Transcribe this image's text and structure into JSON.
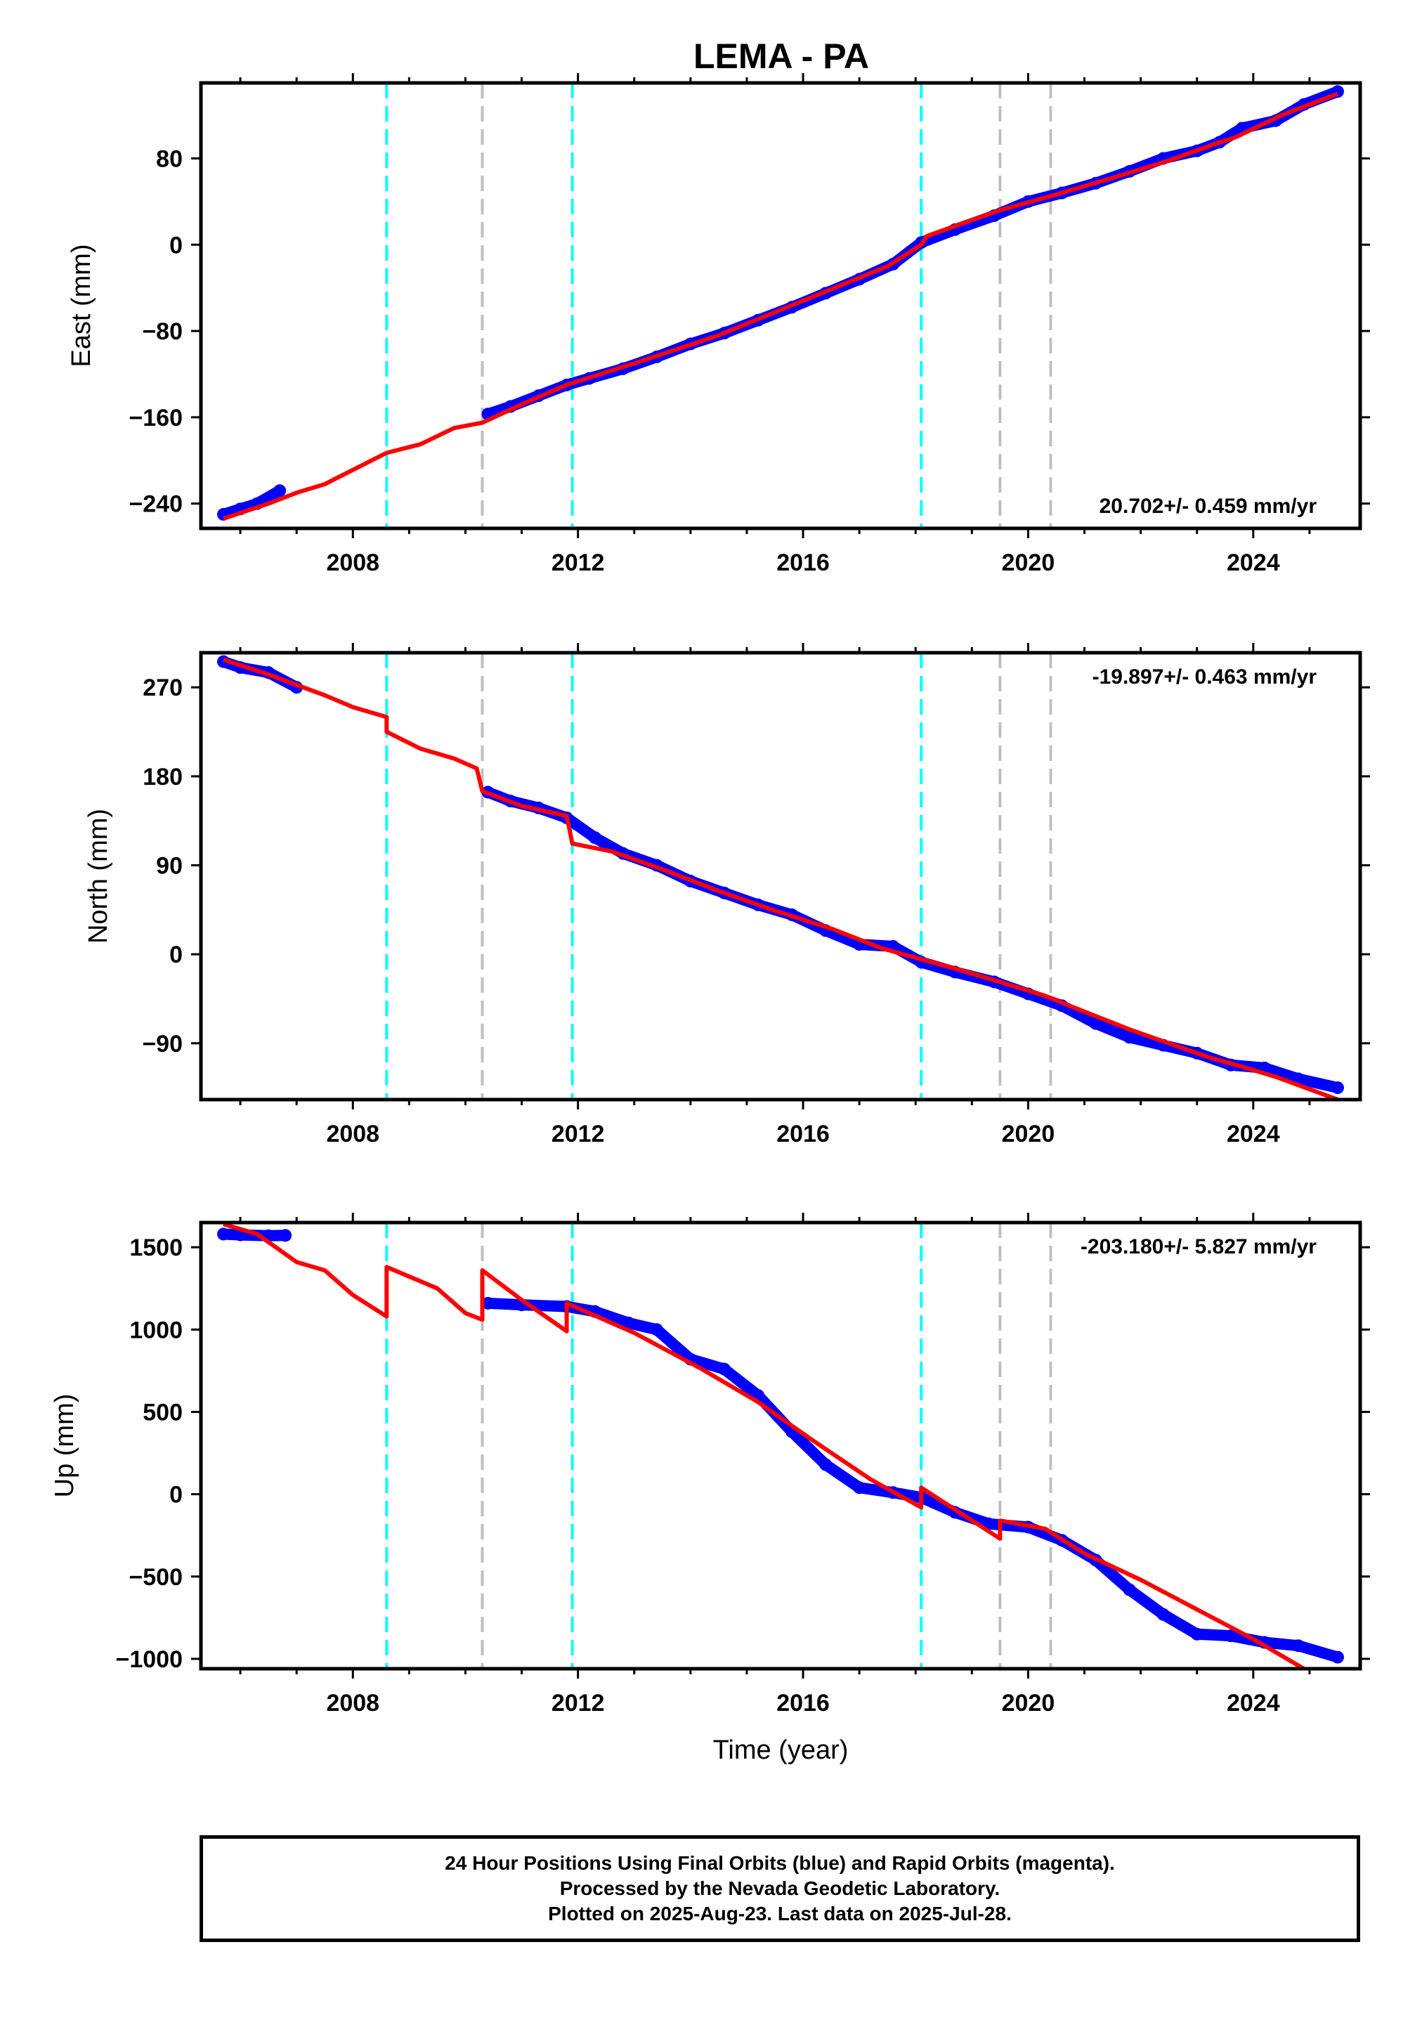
{
  "title": "LEMA - PA",
  "chart_data": [
    {
      "type": "scatter",
      "name": "east",
      "ylabel": "East (mm)",
      "xlabel": "",
      "xlim": [
        2005.3,
        2025.9
      ],
      "ylim": [
        -263,
        150
      ],
      "x_ticks": [
        2008,
        2012,
        2016,
        2020,
        2024
      ],
      "x_tick_labels": [
        "2008",
        "2012",
        "2016",
        "2020",
        "2024"
      ],
      "y_ticks": [
        -240,
        -160,
        -80,
        0,
        80
      ],
      "y_tick_labels": [
        "−240",
        "−160",
        "−80",
        "0",
        "80"
      ],
      "rate": "20.702+/- 0.459 mm/yr",
      "rate_position": "bottom-right",
      "observed": [
        [
          2005.7,
          -250
        ],
        [
          2006.0,
          -245
        ],
        [
          2006.3,
          -240
        ],
        [
          2006.7,
          -228
        ],
        [
          2010.4,
          -157
        ],
        [
          2010.8,
          -150
        ],
        [
          2011.3,
          -140
        ],
        [
          2011.8,
          -130
        ],
        [
          2012.2,
          -124
        ],
        [
          2012.8,
          -115
        ],
        [
          2013.4,
          -104
        ],
        [
          2014.0,
          -92
        ],
        [
          2014.6,
          -82
        ],
        [
          2015.2,
          -70
        ],
        [
          2015.8,
          -58
        ],
        [
          2016.4,
          -45
        ],
        [
          2017.0,
          -32
        ],
        [
          2017.6,
          -18
        ],
        [
          2018.1,
          2
        ],
        [
          2018.7,
          14
        ],
        [
          2019.4,
          27
        ],
        [
          2020.0,
          40
        ],
        [
          2020.6,
          48
        ],
        [
          2021.2,
          57
        ],
        [
          2021.8,
          68
        ],
        [
          2022.4,
          80
        ],
        [
          2023.0,
          87
        ],
        [
          2023.4,
          95
        ],
        [
          2023.8,
          108
        ],
        [
          2024.4,
          115
        ],
        [
          2024.9,
          130
        ],
        [
          2025.5,
          142
        ]
      ],
      "model": [
        [
          2005.7,
          -254
        ],
        [
          2006.5,
          -240
        ],
        [
          2007.0,
          -230
        ],
        [
          2007.5,
          -222
        ],
        [
          2008.6,
          -193
        ],
        [
          2009.2,
          -185
        ],
        [
          2009.8,
          -170
        ],
        [
          2010.3,
          -165
        ],
        [
          2011.0,
          -148
        ],
        [
          2011.8,
          -130
        ],
        [
          2013.0,
          -110
        ],
        [
          2014.5,
          -84
        ],
        [
          2016.0,
          -52
        ],
        [
          2017.5,
          -20
        ],
        [
          2018.1,
          0
        ],
        [
          2018.2,
          8
        ],
        [
          2019.5,
          32
        ],
        [
          2020.4,
          45
        ],
        [
          2021.5,
          62
        ],
        [
          2022.5,
          78
        ],
        [
          2023.3,
          93
        ],
        [
          2023.7,
          100
        ],
        [
          2024.5,
          120
        ],
        [
          2025.5,
          140
        ]
      ]
    },
    {
      "type": "scatter",
      "name": "north",
      "ylabel": "North (mm)",
      "xlabel": "",
      "xlim": [
        2005.3,
        2025.9
      ],
      "ylim": [
        -147,
        305
      ],
      "x_ticks": [
        2008,
        2012,
        2016,
        2020,
        2024
      ],
      "x_tick_labels": [
        "2008",
        "2012",
        "2016",
        "2020",
        "2024"
      ],
      "y_ticks": [
        -90,
        0,
        90,
        180,
        270
      ],
      "y_tick_labels": [
        "−90",
        "0",
        "90",
        "180",
        "270"
      ],
      "rate": "-19.897+/- 0.463 mm/yr",
      "rate_position": "top-right",
      "observed": [
        [
          2005.7,
          296
        ],
        [
          2006.0,
          290
        ],
        [
          2006.5,
          285
        ],
        [
          2007.0,
          270
        ],
        [
          2010.4,
          164
        ],
        [
          2010.8,
          155
        ],
        [
          2011.3,
          148
        ],
        [
          2011.8,
          138
        ],
        [
          2012.3,
          118
        ],
        [
          2012.8,
          102
        ],
        [
          2013.4,
          90
        ],
        [
          2014.0,
          74
        ],
        [
          2014.6,
          62
        ],
        [
          2015.2,
          50
        ],
        [
          2015.8,
          40
        ],
        [
          2016.4,
          24
        ],
        [
          2017.0,
          10
        ],
        [
          2017.6,
          8
        ],
        [
          2018.1,
          -8
        ],
        [
          2018.7,
          -18
        ],
        [
          2019.4,
          -28
        ],
        [
          2020.0,
          -40
        ],
        [
          2020.6,
          -52
        ],
        [
          2021.2,
          -70
        ],
        [
          2021.8,
          -84
        ],
        [
          2022.4,
          -92
        ],
        [
          2023.0,
          -100
        ],
        [
          2023.6,
          -112
        ],
        [
          2024.2,
          -115
        ],
        [
          2024.8,
          -126
        ],
        [
          2025.5,
          -135
        ]
      ],
      "model": [
        [
          2005.7,
          298
        ],
        [
          2006.5,
          283
        ],
        [
          2007.5,
          262
        ],
        [
          2008.0,
          250
        ],
        [
          2008.6,
          240
        ],
        [
          2008.6,
          225
        ],
        [
          2009.2,
          208
        ],
        [
          2009.8,
          198
        ],
        [
          2010.2,
          188
        ],
        [
          2010.3,
          165
        ],
        [
          2011.0,
          150
        ],
        [
          2011.8,
          140
        ],
        [
          2011.9,
          112
        ],
        [
          2012.6,
          104
        ],
        [
          2013.5,
          86
        ],
        [
          2014.5,
          64
        ],
        [
          2015.5,
          44
        ],
        [
          2016.5,
          26
        ],
        [
          2017.4,
          6
        ],
        [
          2018.1,
          -5
        ],
        [
          2018.8,
          -16
        ],
        [
          2019.5,
          -28
        ],
        [
          2020.3,
          -42
        ],
        [
          2021.0,
          -58
        ],
        [
          2021.8,
          -76
        ],
        [
          2022.5,
          -90
        ],
        [
          2023.2,
          -104
        ],
        [
          2023.7,
          -112
        ],
        [
          2024.4,
          -124
        ],
        [
          2025.5,
          -147
        ]
      ]
    },
    {
      "type": "scatter",
      "name": "up",
      "ylabel": "Up (mm)",
      "xlabel": "Time (year)",
      "xlim": [
        2005.3,
        2025.9
      ],
      "ylim": [
        -1060,
        1650
      ],
      "x_ticks": [
        2008,
        2012,
        2016,
        2020,
        2024
      ],
      "x_tick_labels": [
        "2008",
        "2012",
        "2016",
        "2020",
        "2024"
      ],
      "y_ticks": [
        -1000,
        -500,
        0,
        500,
        1000,
        1500
      ],
      "y_tick_labels": [
        "−1000",
        "−500",
        "0",
        "500",
        "1000",
        "1500"
      ],
      "rate": "-203.180+/- 5.827 mm/yr",
      "rate_position": "top-right",
      "observed": [
        [
          2005.7,
          1580
        ],
        [
          2006.0,
          1575
        ],
        [
          2006.5,
          1570
        ],
        [
          2006.8,
          1572
        ],
        [
          2010.4,
          1160
        ],
        [
          2011.0,
          1150
        ],
        [
          2011.8,
          1140
        ],
        [
          2012.3,
          1110
        ],
        [
          2012.9,
          1040
        ],
        [
          2013.4,
          1000
        ],
        [
          2014.0,
          820
        ],
        [
          2014.6,
          760
        ],
        [
          2015.2,
          600
        ],
        [
          2015.8,
          380
        ],
        [
          2016.4,
          180
        ],
        [
          2017.0,
          40
        ],
        [
          2017.6,
          10
        ],
        [
          2018.1,
          -20
        ],
        [
          2018.7,
          -110
        ],
        [
          2019.3,
          -180
        ],
        [
          2020.0,
          -200
        ],
        [
          2020.6,
          -280
        ],
        [
          2021.2,
          -400
        ],
        [
          2021.8,
          -580
        ],
        [
          2022.4,
          -730
        ],
        [
          2023.0,
          -850
        ],
        [
          2023.6,
          -860
        ],
        [
          2024.2,
          -900
        ],
        [
          2024.8,
          -920
        ],
        [
          2025.5,
          -990
        ]
      ],
      "model": [
        [
          2005.7,
          1640
        ],
        [
          2006.3,
          1580
        ],
        [
          2007.0,
          1410
        ],
        [
          2007.5,
          1360
        ],
        [
          2008.0,
          1210
        ],
        [
          2008.6,
          1080
        ],
        [
          2008.6,
          1380
        ],
        [
          2009.5,
          1250
        ],
        [
          2010.0,
          1100
        ],
        [
          2010.3,
          1060
        ],
        [
          2010.3,
          1360
        ],
        [
          2011.0,
          1180
        ],
        [
          2011.8,
          990
        ],
        [
          2011.8,
          1160
        ],
        [
          2013.0,
          980
        ],
        [
          2014.2,
          760
        ],
        [
          2015.2,
          560
        ],
        [
          2016.2,
          320
        ],
        [
          2017.2,
          90
        ],
        [
          2018.1,
          -80
        ],
        [
          2018.1,
          40
        ],
        [
          2019.5,
          -270
        ],
        [
          2019.5,
          -160
        ],
        [
          2020.3,
          -210
        ],
        [
          2021.0,
          -360
        ],
        [
          2022.0,
          -520
        ],
        [
          2023.0,
          -700
        ],
        [
          2024.0,
          -880
        ],
        [
          2024.9,
          -1060
        ]
      ]
    }
  ],
  "events": [
    {
      "year": 2008.6,
      "color": "#00ffff"
    },
    {
      "year": 2010.3,
      "color": "#c0c0c0"
    },
    {
      "year": 2011.9,
      "color": "#00ffff"
    },
    {
      "year": 2018.1,
      "color": "#00ffff"
    },
    {
      "year": 2019.5,
      "color": "#c0c0c0"
    },
    {
      "year": 2020.4,
      "color": "#c0c0c0"
    }
  ],
  "colors": {
    "observed": "#0000ff",
    "model": "#ff0000"
  },
  "footer": {
    "line1": "24 Hour Positions Using Final Orbits (blue) and Rapid Orbits (magenta).",
    "line2": "Processed by the Nevada Geodetic Laboratory.",
    "line3": "Plotted on 2025-Aug-23. Last data on 2025-Jul-28."
  }
}
